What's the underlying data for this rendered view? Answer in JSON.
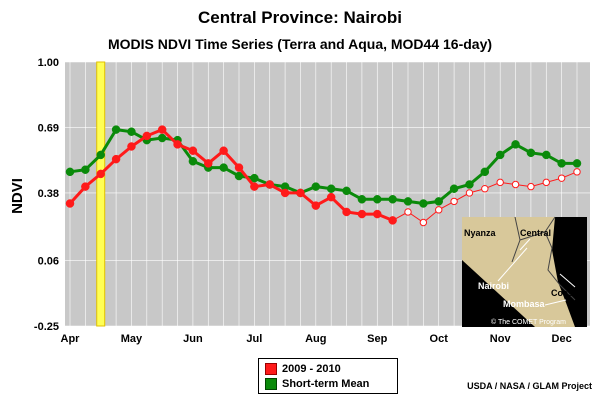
{
  "title": "Central Province: Nairobi",
  "subtitle": "MODIS NDVI Time Series (Terra and Aqua, MOD44 16-day)",
  "credit": "USDA / NASA / GLAM Project",
  "colors": {
    "series_2009_2010": "#ff1a1a",
    "short_term_mean": "#0a8a0a",
    "plot_background": "#c8c8c8",
    "highlight_bar": "#ffff55"
  },
  "inset_map": {
    "labels": [
      "Nyanza",
      "Central",
      "Nairobi",
      "Coast",
      "Mombasa"
    ],
    "copyright": "© The COMET Program"
  },
  "chart_data": {
    "type": "line",
    "ylabel": "NDVI",
    "xlabel": "",
    "yticks": [
      "1.00",
      "0.69",
      "0.38",
      "0.06",
      "-0.25"
    ],
    "ytick_values": [
      1.0,
      0.69,
      0.38,
      0.06,
      -0.25
    ],
    "ylim": [
      -0.25,
      1.0
    ],
    "grid": true,
    "legend_position": "bottom-center",
    "months": [
      "Apr",
      "May",
      "Jun",
      "Jul",
      "Aug",
      "Sep",
      "Oct",
      "Nov",
      "Dec"
    ],
    "highlighted_period_index": 2,
    "series": [
      {
        "name": "2009 - 2010",
        "values": [
          0.33,
          0.41,
          0.47,
          0.54,
          0.6,
          0.65,
          0.68,
          0.61,
          0.58,
          0.52,
          0.58,
          0.5,
          0.41,
          0.42,
          0.38,
          0.38,
          0.32,
          0.36,
          0.29,
          0.28,
          0.28,
          0.25,
          0.29,
          0.24,
          0.3,
          0.34,
          0.38,
          0.4,
          0.43,
          0.42,
          0.41,
          0.43,
          0.45,
          0.48
        ],
        "last_observed_index": 21
      },
      {
        "name": "Short-term Mean",
        "values": [
          0.48,
          0.49,
          0.56,
          0.68,
          0.67,
          0.63,
          0.64,
          0.63,
          0.53,
          0.5,
          0.5,
          0.46,
          0.45,
          0.42,
          0.41,
          0.38,
          0.41,
          0.4,
          0.39,
          0.35,
          0.35,
          0.35,
          0.34,
          0.33,
          0.34,
          0.4,
          0.42,
          0.48,
          0.56,
          0.61,
          0.57,
          0.56,
          0.52,
          0.52
        ]
      }
    ]
  }
}
